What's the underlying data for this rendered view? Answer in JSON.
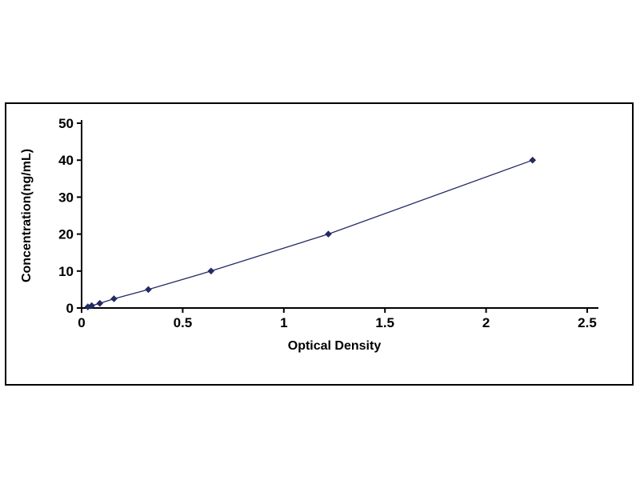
{
  "page": {
    "background": "#ffffff"
  },
  "chart_frame": {
    "border_color": "#000000"
  },
  "chart_data": {
    "type": "line",
    "title": "",
    "xlabel": "Optical Density",
    "ylabel": "Concentration(ng/mL)",
    "xlim": [
      0,
      2.5
    ],
    "ylim": [
      0,
      50
    ],
    "xticks": [
      0,
      0.5,
      1,
      1.5,
      2,
      2.5
    ],
    "xtick_labels": [
      "0",
      "0.5",
      "1",
      "1.5",
      "2",
      "2.5"
    ],
    "yticks": [
      0,
      10,
      20,
      30,
      40,
      50
    ],
    "ytick_labels": [
      "0",
      "10",
      "20",
      "30",
      "40",
      "50"
    ],
    "grid": false,
    "legend": null,
    "axis_color": "#000000",
    "series": [
      {
        "name": "standard-curve",
        "marker": "diamond",
        "color": "#252a63",
        "points": [
          {
            "x": 0.031,
            "y": 0.31
          },
          {
            "x": 0.05,
            "y": 0.63
          },
          {
            "x": 0.09,
            "y": 1.25
          },
          {
            "x": 0.16,
            "y": 2.5
          },
          {
            "x": 0.33,
            "y": 5
          },
          {
            "x": 0.64,
            "y": 10
          },
          {
            "x": 1.22,
            "y": 20
          },
          {
            "x": 2.23,
            "y": 40
          }
        ]
      }
    ]
  }
}
